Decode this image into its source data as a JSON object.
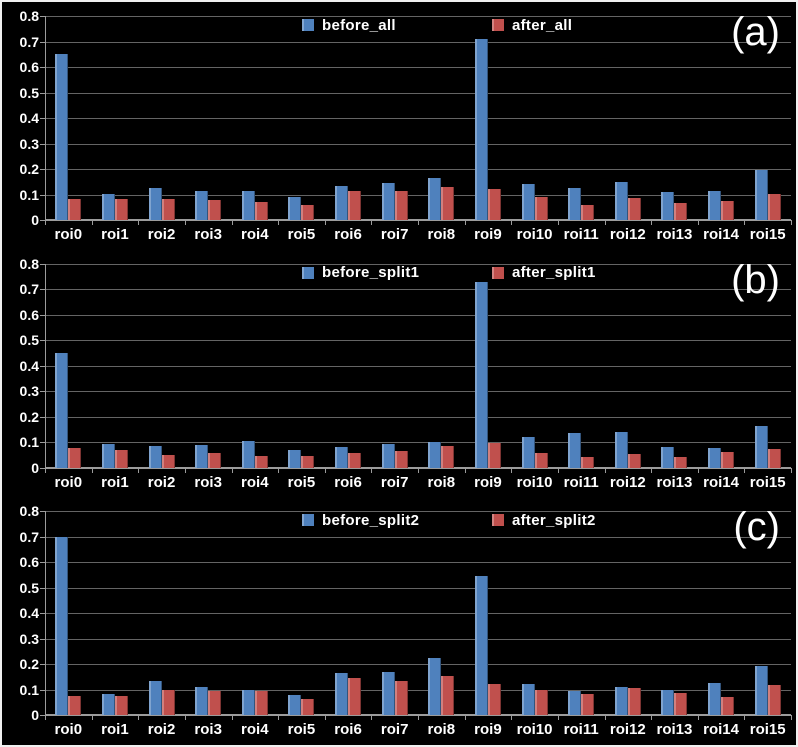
{
  "figure": {
    "background": "#000000",
    "border_color": "#f0f0f0",
    "text_color": "#ffffff",
    "gridline_color": "#646464",
    "axis_color": "#9c9c9c",
    "series_colors": {
      "before": "#4f81bd",
      "after": "#c0504d"
    }
  },
  "categories": [
    "roi0",
    "roi1",
    "roi2",
    "roi3",
    "roi4",
    "roi5",
    "roi6",
    "roi7",
    "roi8",
    "roi9",
    "roi10",
    "roi11",
    "roi12",
    "roi13",
    "roi14",
    "roi15"
  ],
  "y_ticks": [
    "0.8",
    "0.7",
    "0.6",
    "0.5",
    "0.4",
    "0.3",
    "0.2",
    "0.1",
    "0"
  ],
  "chart_data": [
    {
      "type": "bar",
      "panel_label": "(a)",
      "title": "",
      "xlabel": "",
      "ylabel": "",
      "ylim": [
        0,
        0.8
      ],
      "grid": true,
      "legend_position": "top-center",
      "categories": [
        "roi0",
        "roi1",
        "roi2",
        "roi3",
        "roi4",
        "roi5",
        "roi6",
        "roi7",
        "roi8",
        "roi9",
        "roi10",
        "roi11",
        "roi12",
        "roi13",
        "roi14",
        "roi15"
      ],
      "series": [
        {
          "name": "before_all",
          "color": "#4f81bd",
          "values": [
            0.65,
            0.101,
            0.124,
            0.114,
            0.113,
            0.089,
            0.135,
            0.146,
            0.166,
            0.71,
            0.14,
            0.124,
            0.15,
            0.108,
            0.112,
            0.197
          ]
        },
        {
          "name": "after_all",
          "color": "#c0504d",
          "values": [
            0.084,
            0.082,
            0.084,
            0.078,
            0.072,
            0.06,
            0.115,
            0.112,
            0.131,
            0.122,
            0.09,
            0.058,
            0.086,
            0.066,
            0.074,
            0.102
          ]
        }
      ]
    },
    {
      "type": "bar",
      "panel_label": "(b)",
      "title": "",
      "xlabel": "",
      "ylabel": "",
      "ylim": [
        0,
        0.8
      ],
      "grid": true,
      "legend_position": "top-center",
      "categories": [
        "roi0",
        "roi1",
        "roi2",
        "roi3",
        "roi4",
        "roi5",
        "roi6",
        "roi7",
        "roi8",
        "roi9",
        "roi10",
        "roi11",
        "roi12",
        "roi13",
        "roi14",
        "roi15"
      ],
      "series": [
        {
          "name": "before_split1",
          "color": "#4f81bd",
          "values": [
            0.45,
            0.092,
            0.085,
            0.088,
            0.104,
            0.068,
            0.08,
            0.094,
            0.102,
            0.73,
            0.119,
            0.137,
            0.138,
            0.082,
            0.078,
            0.163
          ]
        },
        {
          "name": "after_split1",
          "color": "#c0504d",
          "values": [
            0.077,
            0.07,
            0.051,
            0.056,
            0.046,
            0.046,
            0.056,
            0.065,
            0.084,
            0.097,
            0.059,
            0.043,
            0.055,
            0.043,
            0.062,
            0.074
          ]
        }
      ]
    },
    {
      "type": "bar",
      "panel_label": "(c)",
      "title": "",
      "xlabel": "",
      "ylabel": "",
      "ylim": [
        0,
        0.8
      ],
      "grid": true,
      "legend_position": "top-center",
      "categories": [
        "roi0",
        "roi1",
        "roi2",
        "roi3",
        "roi4",
        "roi5",
        "roi6",
        "roi7",
        "roi8",
        "roi9",
        "roi10",
        "roi11",
        "roi12",
        "roi13",
        "roi14",
        "roi15"
      ],
      "series": [
        {
          "name": "before_split2",
          "color": "#4f81bd",
          "values": [
            0.7,
            0.082,
            0.134,
            0.113,
            0.101,
            0.079,
            0.165,
            0.17,
            0.225,
            0.545,
            0.121,
            0.096,
            0.113,
            0.101,
            0.127,
            0.195
          ]
        },
        {
          "name": "after_split2",
          "color": "#c0504d",
          "values": [
            0.074,
            0.074,
            0.098,
            0.094,
            0.096,
            0.066,
            0.148,
            0.134,
            0.156,
            0.121,
            0.098,
            0.082,
            0.106,
            0.089,
            0.073,
            0.118
          ]
        }
      ]
    }
  ]
}
